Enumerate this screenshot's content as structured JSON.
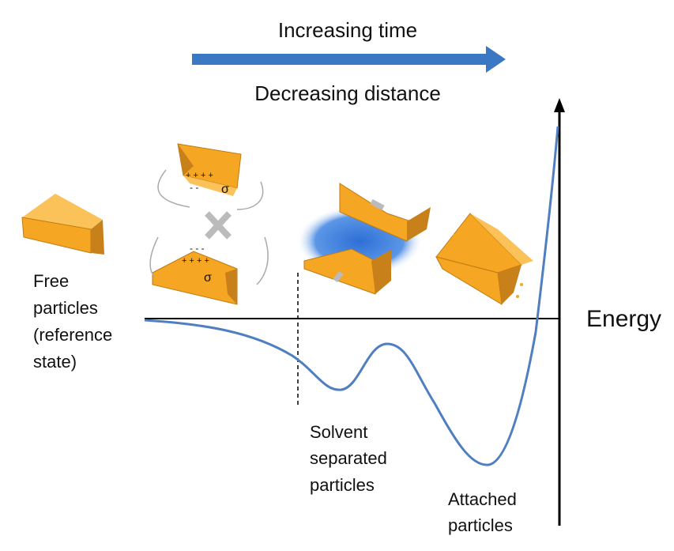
{
  "header": {
    "top_label": "Increasing time",
    "bottom_label": "Decreasing distance"
  },
  "axis": {
    "label": "Energy"
  },
  "states": [
    {
      "lines": [
        "Free",
        "particles",
        "(reference",
        "state)"
      ]
    },
    {
      "lines": [
        "Solvent",
        "separated",
        "particles"
      ]
    },
    {
      "lines": [
        "Attached",
        "particles"
      ]
    }
  ],
  "symbols": {
    "sigma_top": "σ",
    "sigma_bottom": "σ",
    "charges_top": "+ + + +",
    "charges_top_neg": "- -",
    "charges_bottom": "+ + + +",
    "charges_bottom_neg": "- - -"
  }
}
